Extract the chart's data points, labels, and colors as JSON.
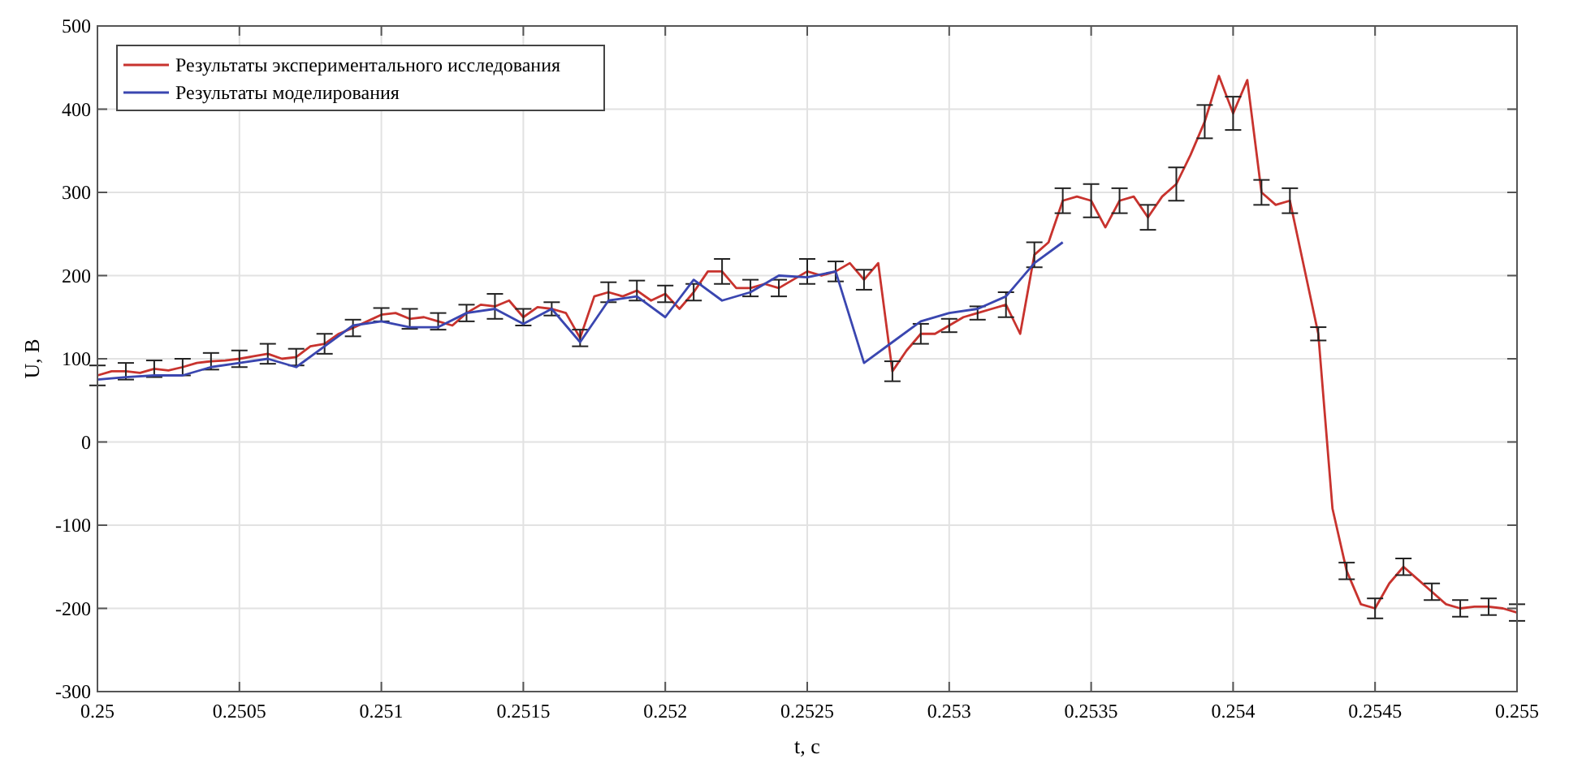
{
  "chart_data": {
    "type": "line",
    "xlabel": "t, c",
    "ylabel": "U, B",
    "xlim": [
      0.25,
      0.255
    ],
    "ylim": [
      -300,
      500
    ],
    "xticks": [
      0.25,
      0.2505,
      0.251,
      0.2515,
      0.252,
      0.2525,
      0.253,
      0.2535,
      0.254,
      0.2545,
      0.255
    ],
    "yticks": [
      -300,
      -200,
      -100,
      0,
      100,
      200,
      300,
      400,
      500
    ],
    "grid": true,
    "legend": "top left",
    "series": [
      {
        "name": "Результаты экспериментального исследования",
        "color": "#c8332e",
        "x": [
          0.25,
          0.25005,
          0.2501,
          0.25015,
          0.2502,
          0.25025,
          0.2503,
          0.25035,
          0.2504,
          0.25045,
          0.2505,
          0.25055,
          0.2506,
          0.25065,
          0.2507,
          0.25075,
          0.2508,
          0.25085,
          0.2509,
          0.25095,
          0.251,
          0.25105,
          0.2511,
          0.25115,
          0.2512,
          0.25125,
          0.2513,
          0.25135,
          0.2514,
          0.25145,
          0.2515,
          0.25155,
          0.2516,
          0.25165,
          0.2517,
          0.25175,
          0.2518,
          0.25185,
          0.2519,
          0.25195,
          0.252,
          0.25205,
          0.2521,
          0.25215,
          0.2522,
          0.25225,
          0.2523,
          0.25235,
          0.2524,
          0.25245,
          0.2525,
          0.25255,
          0.2526,
          0.25265,
          0.2527,
          0.25275,
          0.2528,
          0.25285,
          0.2529,
          0.25295,
          0.253,
          0.25305,
          0.2531,
          0.25315,
          0.2532,
          0.25325,
          0.2533,
          0.25335,
          0.2534,
          0.25345,
          0.2535,
          0.25355,
          0.2536,
          0.25365,
          0.2537,
          0.25375,
          0.2538,
          0.25385,
          0.2539,
          0.25395,
          0.254,
          0.25405,
          0.2541,
          0.25415,
          0.2542,
          0.25425,
          0.2543,
          0.25435,
          0.2544,
          0.25445,
          0.2545,
          0.25455,
          0.2546,
          0.25465,
          0.2547,
          0.25475,
          0.2548,
          0.25485,
          0.2549,
          0.25495,
          0.255
        ],
        "values": [
          80,
          85,
          85,
          83,
          88,
          86,
          90,
          95,
          97,
          98,
          100,
          103,
          106,
          100,
          102,
          115,
          118,
          130,
          137,
          145,
          153,
          155,
          148,
          150,
          145,
          140,
          155,
          165,
          163,
          170,
          150,
          162,
          160,
          155,
          125,
          175,
          180,
          175,
          182,
          170,
          178,
          160,
          180,
          205,
          205,
          185,
          185,
          190,
          185,
          195,
          205,
          200,
          205,
          215,
          195,
          215,
          85,
          110,
          130,
          130,
          140,
          150,
          155,
          160,
          165,
          130,
          225,
          240,
          290,
          295,
          290,
          258,
          290,
          295,
          270,
          295,
          310,
          345,
          385,
          440,
          395,
          435,
          300,
          285,
          290,
          210,
          130,
          -80,
          -155,
          -195,
          -200,
          -170,
          -150,
          -165,
          -180,
          -195,
          -200,
          -198,
          -198,
          -200,
          -205
        ],
        "errors": [
          12,
          null,
          10,
          null,
          10,
          null,
          10,
          null,
          10,
          null,
          10,
          null,
          12,
          null,
          10,
          null,
          12,
          null,
          10,
          null,
          8,
          null,
          12,
          null,
          10,
          null,
          10,
          null,
          15,
          null,
          10,
          null,
          8,
          null,
          10,
          null,
          12,
          null,
          12,
          null,
          10,
          null,
          10,
          null,
          15,
          null,
          10,
          null,
          10,
          null,
          15,
          null,
          12,
          null,
          12,
          null,
          12,
          null,
          12,
          null,
          8,
          null,
          8,
          null,
          15,
          null,
          15,
          null,
          15,
          null,
          20,
          null,
          15,
          null,
          15,
          null,
          20,
          null,
          20,
          null,
          20,
          null,
          15,
          null,
          15,
          null,
          8,
          null,
          10,
          null,
          12,
          null,
          10,
          null,
          10,
          null,
          10,
          null,
          10,
          null,
          10
        ]
      },
      {
        "name": "Результаты моделирования",
        "color": "#3a46b0",
        "x": [
          0.25,
          0.2501,
          0.2502,
          0.2503,
          0.2504,
          0.2505,
          0.2506,
          0.2507,
          0.2508,
          0.2509,
          0.251,
          0.2511,
          0.2512,
          0.2513,
          0.2514,
          0.2515,
          0.2516,
          0.2517,
          0.2518,
          0.2519,
          0.252,
          0.2521,
          0.2522,
          0.2523,
          0.2524,
          0.2525,
          0.2526,
          0.2527,
          0.2528,
          0.2529,
          0.253,
          0.2531,
          0.2532,
          0.2533,
          0.2534
        ],
        "values": [
          75,
          78,
          80,
          80,
          90,
          95,
          100,
          90,
          115,
          140,
          145,
          138,
          138,
          155,
          160,
          142,
          160,
          120,
          170,
          175,
          150,
          195,
          170,
          180,
          200,
          198,
          205,
          95,
          120,
          145,
          155,
          160,
          175,
          215,
          240
        ]
      }
    ]
  }
}
